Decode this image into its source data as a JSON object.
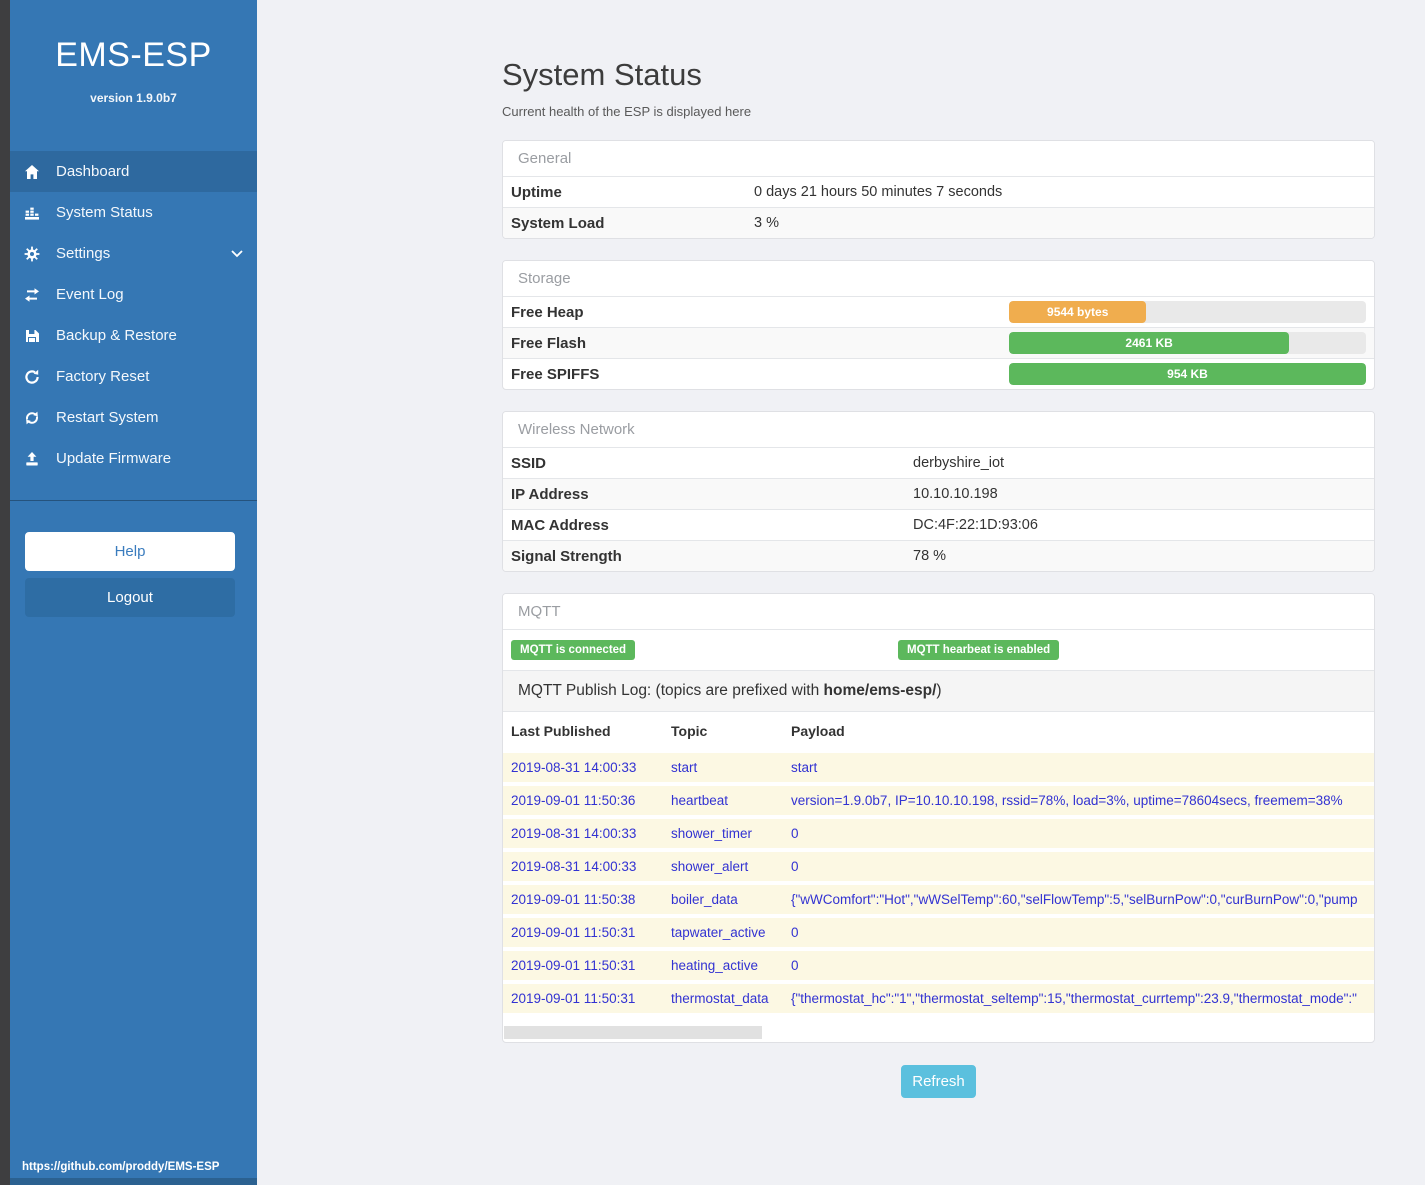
{
  "colors": {
    "sidebar": "#3577b4",
    "sidebar_active": "#2e699f",
    "success": "#5cb85c",
    "warning": "#f0ad4e",
    "info": "#5bc0de",
    "log_row_bg": "#fcf8e3",
    "log_text": "#3232d2"
  },
  "sidebar": {
    "brand": "EMS-ESP",
    "version": "version 1.9.0b7",
    "items": [
      {
        "icon": "home-icon",
        "label": "Dashboard",
        "active": true
      },
      {
        "icon": "system-status-icon",
        "label": "System Status"
      },
      {
        "icon": "gear-icon",
        "label": "Settings",
        "expandable": true
      },
      {
        "icon": "event-log-icon",
        "label": "Event Log"
      },
      {
        "icon": "backup-restore-icon",
        "label": "Backup & Restore"
      },
      {
        "icon": "factory-reset-icon",
        "label": "Factory Reset"
      },
      {
        "icon": "restart-icon",
        "label": "Restart System"
      },
      {
        "icon": "upload-icon",
        "label": "Update Firmware"
      }
    ],
    "help_label": "Help",
    "logout_label": "Logout",
    "footer_link": "https://github.com/proddy/EMS-ESP"
  },
  "page": {
    "title": "System Status",
    "subtitle": "Current health of the ESP is displayed here"
  },
  "general": {
    "header": "General",
    "rows": [
      {
        "label": "Uptime",
        "value": "0 days 21 hours 50 minutes 7 seconds"
      },
      {
        "label": "System Load",
        "value": "3 %"
      }
    ]
  },
  "storage": {
    "header": "Storage",
    "rows": [
      {
        "label": "Free Heap",
        "value": "9544 bytes",
        "width": "38.5%",
        "color": "#f0ad4e"
      },
      {
        "label": "Free Flash",
        "value": "2461 KB",
        "width": "78.5%",
        "color": "#5cb85c"
      },
      {
        "label": "Free SPIFFS",
        "value": "954 KB",
        "width": "100%",
        "color": "#5cb85c"
      }
    ]
  },
  "wireless": {
    "header": "Wireless Network",
    "rows": [
      {
        "label": "SSID",
        "value": "derbyshire_iot"
      },
      {
        "label": "IP Address",
        "value": "10.10.10.198"
      },
      {
        "label": "MAC Address",
        "value": "DC:4F:22:1D:93:06"
      },
      {
        "label": "Signal Strength",
        "value": "78 %"
      }
    ]
  },
  "mqtt": {
    "header": "MQTT",
    "badges": [
      "MQTT is connected",
      "MQTT hearbeat is enabled"
    ],
    "publish_log": {
      "prefix": "MQTT Publish Log: (topics are prefixed with ",
      "topic_prefix": "home/ems-esp/",
      "suffix": ")"
    },
    "table": {
      "headers": [
        "Last Published",
        "Topic",
        "Payload"
      ],
      "rows": [
        [
          "2019-08-31 14:00:33",
          "start",
          "start"
        ],
        [
          "2019-09-01 11:50:36",
          "heartbeat",
          "version=1.9.0b7, IP=10.10.10.198, rssid=78%, load=3%, uptime=78604secs, freemem=38%"
        ],
        [
          "2019-08-31 14:00:33",
          "shower_timer",
          "0"
        ],
        [
          "2019-08-31 14:00:33",
          "shower_alert",
          "0"
        ],
        [
          "2019-09-01 11:50:38",
          "boiler_data",
          "{\"wWComfort\":\"Hot\",\"wWSelTemp\":60,\"selFlowTemp\":5,\"selBurnPow\":0,\"curBurnPow\":0,\"pump"
        ],
        [
          "2019-09-01 11:50:31",
          "tapwater_active",
          "0"
        ],
        [
          "2019-09-01 11:50:31",
          "heating_active",
          "0"
        ],
        [
          "2019-09-01 11:50:31",
          "thermostat_data",
          "{\"thermostat_hc\":\"1\",\"thermostat_seltemp\":15,\"thermostat_currtemp\":23.9,\"thermostat_mode\":\""
        ]
      ]
    }
  },
  "refresh_label": "Refresh"
}
